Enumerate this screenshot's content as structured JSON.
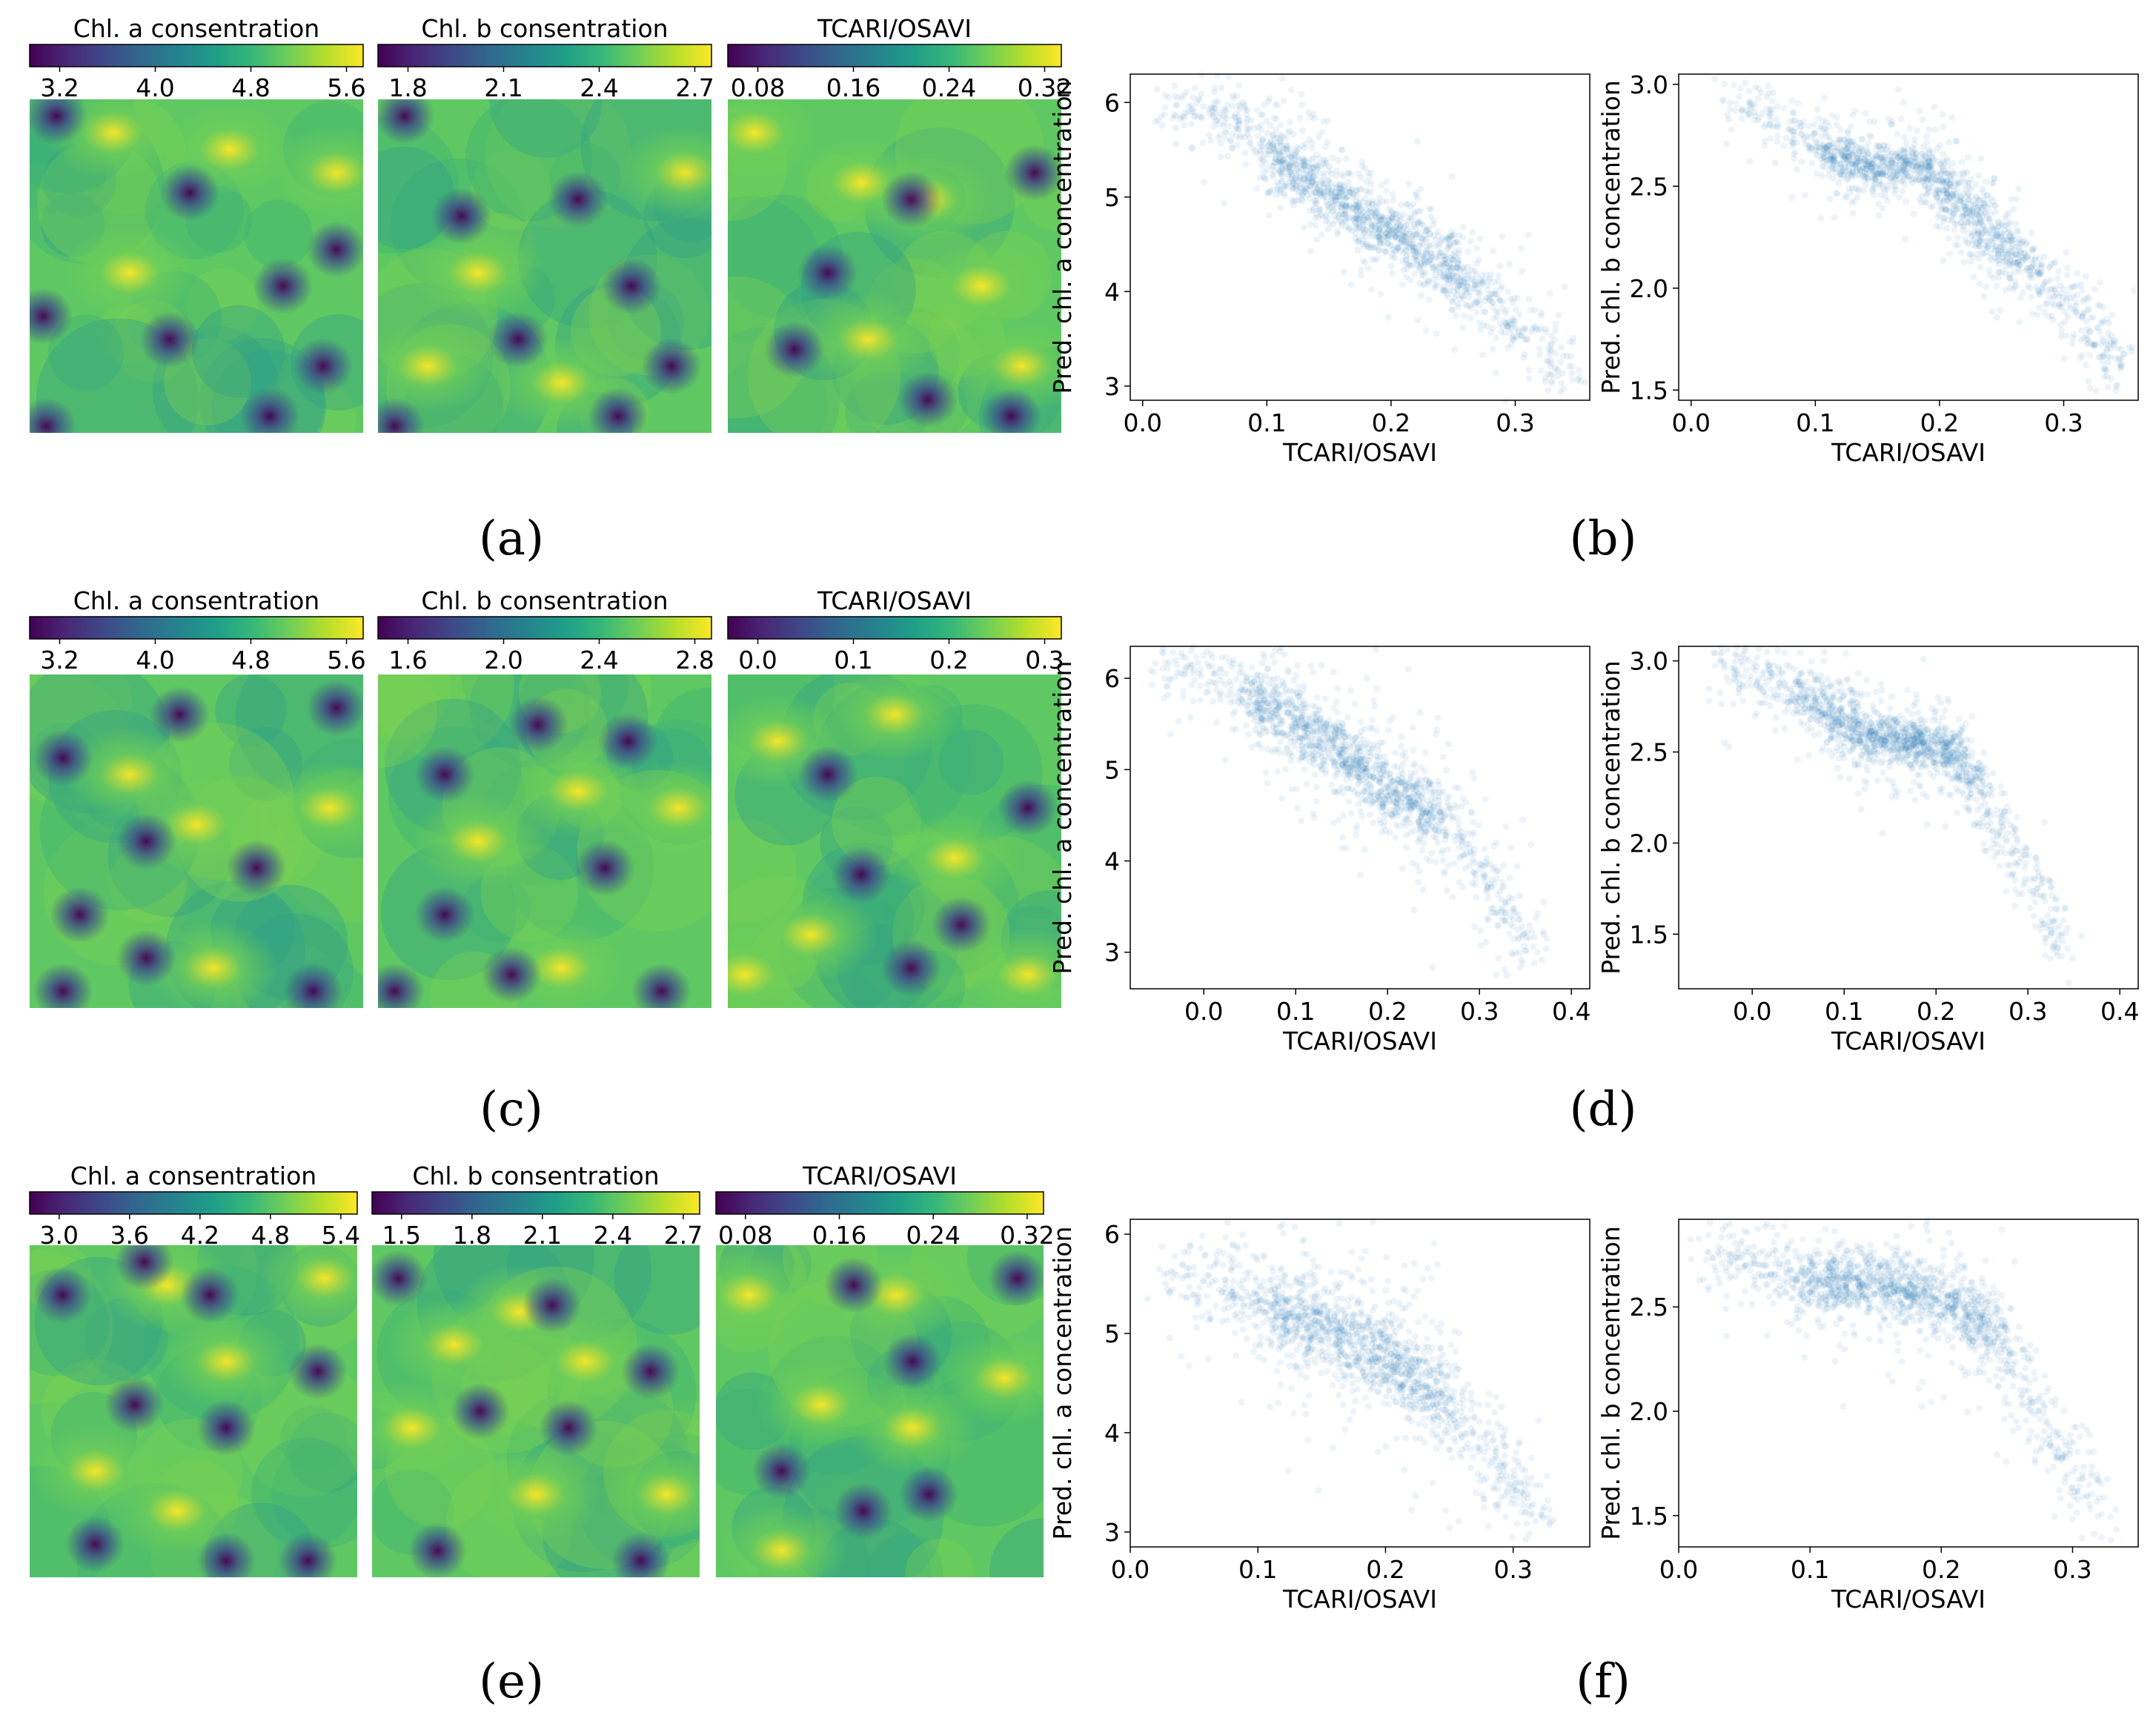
{
  "figure": {
    "subfigure_labels": [
      "(a)",
      "(b)",
      "(c)",
      "(d)",
      "(e)",
      "(f)"
    ]
  },
  "colors": {
    "scatter_point": "#1f77b4",
    "viridis": [
      "#440154",
      "#482878",
      "#3e4989",
      "#31688e",
      "#26828e",
      "#1f9e89",
      "#35b779",
      "#6ece58",
      "#b5de2b",
      "#fde725"
    ]
  },
  "chart_data": [
    {
      "id": "a-chl-a",
      "group": "a",
      "type": "heatmap",
      "colormap": "viridis",
      "title": "Chl. a consentration",
      "colorbar_ticks": [
        "3.2",
        "4.0",
        "4.8",
        "5.6"
      ],
      "blobs_low": [
        [
          0.08,
          0.05
        ],
        [
          0.48,
          0.28
        ],
        [
          0.76,
          0.56
        ],
        [
          0.42,
          0.72
        ],
        [
          0.88,
          0.8
        ],
        [
          0.05,
          0.98
        ],
        [
          0.72,
          0.95
        ],
        [
          0.92,
          0.45
        ],
        [
          0.04,
          0.65
        ]
      ],
      "blobs_high": [
        [
          0.3,
          0.52
        ],
        [
          0.92,
          0.22
        ],
        [
          0.6,
          0.15
        ],
        [
          0.25,
          0.1
        ]
      ]
    },
    {
      "id": "a-chl-b",
      "group": "a",
      "type": "heatmap",
      "colormap": "viridis",
      "title": "Chl. b consentration",
      "colorbar_ticks": [
        "1.8",
        "2.1",
        "2.4",
        "2.7"
      ],
      "blobs_low": [
        [
          0.08,
          0.05
        ],
        [
          0.6,
          0.3
        ],
        [
          0.76,
          0.56
        ],
        [
          0.42,
          0.72
        ],
        [
          0.88,
          0.8
        ],
        [
          0.05,
          0.98
        ],
        [
          0.72,
          0.95
        ],
        [
          0.25,
          0.35
        ]
      ],
      "blobs_high": [
        [
          0.3,
          0.52
        ],
        [
          0.92,
          0.22
        ],
        [
          0.55,
          0.85
        ],
        [
          0.15,
          0.8
        ]
      ]
    },
    {
      "id": "a-tcari",
      "group": "a",
      "type": "heatmap",
      "colormap": "viridis",
      "title": "TCARI/OSAVI",
      "colorbar_ticks": [
        "0.08",
        "0.16",
        "0.24",
        "0.32"
      ],
      "blobs_low": [
        [
          0.3,
          0.52
        ],
        [
          0.55,
          0.3
        ],
        [
          0.92,
          0.22
        ],
        [
          0.2,
          0.75
        ],
        [
          0.6,
          0.9
        ],
        [
          0.85,
          0.95
        ]
      ],
      "blobs_high": [
        [
          0.76,
          0.56
        ],
        [
          0.08,
          0.1
        ],
        [
          0.42,
          0.72
        ],
        [
          0.88,
          0.8
        ],
        [
          0.6,
          0.3
        ],
        [
          0.4,
          0.25
        ]
      ]
    },
    {
      "id": "b-chl-a",
      "group": "b",
      "type": "scatter",
      "xlabel": "TCARI/OSAVI",
      "ylabel": "Pred. chl. a concentration",
      "xlim": [
        -0.01,
        0.36
      ],
      "ylim": [
        2.85,
        6.3
      ],
      "xticks": [
        "0.0",
        "0.1",
        "0.2",
        "0.3"
      ],
      "yticks": [
        "3",
        "4",
        "5",
        "6"
      ],
      "trend": [
        [
          0.02,
          6.0
        ],
        [
          0.08,
          5.8
        ],
        [
          0.12,
          5.3
        ],
        [
          0.16,
          4.95
        ],
        [
          0.22,
          4.5
        ],
        [
          0.28,
          3.9
        ],
        [
          0.345,
          3.1
        ]
      ],
      "spread": 0.28
    },
    {
      "id": "b-chl-b",
      "group": "b",
      "type": "scatter",
      "xlabel": "TCARI/OSAVI",
      "ylabel": "Pred. chl. b concentration",
      "xlim": [
        -0.01,
        0.36
      ],
      "ylim": [
        1.45,
        3.05
      ],
      "xticks": [
        "0.0",
        "0.1",
        "0.2",
        "0.3"
      ],
      "yticks": [
        "1.5",
        "2.0",
        "2.5",
        "3.0"
      ],
      "trend": [
        [
          0.03,
          2.93
        ],
        [
          0.09,
          2.75
        ],
        [
          0.13,
          2.6
        ],
        [
          0.19,
          2.6
        ],
        [
          0.25,
          2.2
        ],
        [
          0.31,
          1.9
        ],
        [
          0.345,
          1.6
        ]
      ],
      "spread": 0.1
    },
    {
      "id": "c-chl-a",
      "group": "c",
      "type": "heatmap",
      "colormap": "viridis",
      "title": "Chl. a consentration",
      "colorbar_ticks": [
        "3.2",
        "4.0",
        "4.8",
        "5.6"
      ],
      "blobs_low": [
        [
          0.45,
          0.12
        ],
        [
          0.1,
          0.25
        ],
        [
          0.35,
          0.5
        ],
        [
          0.68,
          0.58
        ],
        [
          0.15,
          0.72
        ],
        [
          0.35,
          0.85
        ],
        [
          0.1,
          0.95
        ],
        [
          0.85,
          0.95
        ],
        [
          0.92,
          0.1
        ]
      ],
      "blobs_high": [
        [
          0.3,
          0.3
        ],
        [
          0.9,
          0.4
        ],
        [
          0.55,
          0.88
        ],
        [
          0.5,
          0.45
        ]
      ]
    },
    {
      "id": "c-chl-b",
      "group": "c",
      "type": "heatmap",
      "colormap": "viridis",
      "title": "Chl. b consentration",
      "colorbar_ticks": [
        "1.6",
        "2.0",
        "2.4",
        "2.8"
      ],
      "blobs_low": [
        [
          0.48,
          0.15
        ],
        [
          0.2,
          0.3
        ],
        [
          0.75,
          0.2
        ],
        [
          0.68,
          0.58
        ],
        [
          0.2,
          0.72
        ],
        [
          0.4,
          0.9
        ],
        [
          0.05,
          0.95
        ],
        [
          0.85,
          0.95
        ]
      ],
      "blobs_high": [
        [
          0.3,
          0.5
        ],
        [
          0.9,
          0.4
        ],
        [
          0.55,
          0.88
        ],
        [
          0.6,
          0.35
        ]
      ]
    },
    {
      "id": "c-tcari",
      "group": "c",
      "type": "heatmap",
      "colormap": "viridis",
      "title": "TCARI/OSAVI",
      "colorbar_ticks": [
        "0.0",
        "0.1",
        "0.2",
        "0.3"
      ],
      "blobs_low": [
        [
          0.3,
          0.3
        ],
        [
          0.9,
          0.4
        ],
        [
          0.55,
          0.88
        ],
        [
          0.4,
          0.6
        ],
        [
          0.7,
          0.75
        ]
      ],
      "blobs_high": [
        [
          0.5,
          0.12
        ],
        [
          0.68,
          0.55
        ],
        [
          0.25,
          0.78
        ],
        [
          0.15,
          0.2
        ],
        [
          0.05,
          0.9
        ],
        [
          0.9,
          0.9
        ]
      ]
    },
    {
      "id": "d-chl-a",
      "group": "d",
      "type": "scatter",
      "xlabel": "TCARI/OSAVI",
      "ylabel": "Pred. chl. a concentration",
      "xlim": [
        -0.08,
        0.42
      ],
      "ylim": [
        2.6,
        6.35
      ],
      "xticks": [
        "0.0",
        "0.1",
        "0.2",
        "0.3",
        "0.4"
      ],
      "yticks": [
        "3",
        "4",
        "5",
        "6"
      ],
      "trend": [
        [
          -0.05,
          6.2
        ],
        [
          0.05,
          5.85
        ],
        [
          0.12,
          5.35
        ],
        [
          0.2,
          4.8
        ],
        [
          0.27,
          4.4
        ],
        [
          0.32,
          3.6
        ],
        [
          0.36,
          3.0
        ]
      ],
      "spread": 0.35
    },
    {
      "id": "d-chl-b",
      "group": "d",
      "type": "scatter",
      "xlabel": "TCARI/OSAVI",
      "ylabel": "Pred. chl. b concentration",
      "xlim": [
        -0.08,
        0.42
      ],
      "ylim": [
        1.2,
        3.08
      ],
      "xticks": [
        "0.0",
        "0.1",
        "0.2",
        "0.3",
        "0.4"
      ],
      "yticks": [
        "1.5",
        "2.0",
        "2.5",
        "3.0"
      ],
      "trend": [
        [
          -0.04,
          3.0
        ],
        [
          0.06,
          2.8
        ],
        [
          0.12,
          2.6
        ],
        [
          0.22,
          2.5
        ],
        [
          0.27,
          2.1
        ],
        [
          0.31,
          1.75
        ],
        [
          0.34,
          1.4
        ]
      ],
      "spread": 0.13
    },
    {
      "id": "e-chl-a",
      "group": "e",
      "type": "heatmap",
      "colormap": "viridis",
      "title": "Chl. a consentration",
      "colorbar_ticks": [
        "3.0",
        "3.6",
        "4.2",
        "4.8",
        "5.4"
      ],
      "blobs_low": [
        [
          0.1,
          0.15
        ],
        [
          0.55,
          0.15
        ],
        [
          0.88,
          0.38
        ],
        [
          0.32,
          0.48
        ],
        [
          0.6,
          0.55
        ],
        [
          0.2,
          0.9
        ],
        [
          0.6,
          0.95
        ],
        [
          0.85,
          0.95
        ],
        [
          0.35,
          0.05
        ]
      ],
      "blobs_high": [
        [
          0.42,
          0.12
        ],
        [
          0.6,
          0.35
        ],
        [
          0.9,
          0.1
        ],
        [
          0.2,
          0.68
        ],
        [
          0.45,
          0.8
        ]
      ]
    },
    {
      "id": "e-chl-b",
      "group": "e",
      "type": "heatmap",
      "colormap": "viridis",
      "title": "Chl. b consentration",
      "colorbar_ticks": [
        "1.5",
        "1.8",
        "2.1",
        "2.4",
        "2.7"
      ],
      "blobs_low": [
        [
          0.08,
          0.1
        ],
        [
          0.55,
          0.18
        ],
        [
          0.85,
          0.38
        ],
        [
          0.33,
          0.5
        ],
        [
          0.6,
          0.55
        ],
        [
          0.2,
          0.92
        ],
        [
          0.82,
          0.95
        ]
      ],
      "blobs_high": [
        [
          0.45,
          0.2
        ],
        [
          0.65,
          0.35
        ],
        [
          0.12,
          0.55
        ],
        [
          0.5,
          0.75
        ],
        [
          0.9,
          0.75
        ],
        [
          0.25,
          0.3
        ]
      ]
    },
    {
      "id": "e-tcari",
      "group": "e",
      "type": "heatmap",
      "colormap": "viridis",
      "title": "TCARI/OSAVI",
      "colorbar_ticks": [
        "0.08",
        "0.16",
        "0.24",
        "0.32"
      ],
      "blobs_low": [
        [
          0.42,
          0.12
        ],
        [
          0.6,
          0.35
        ],
        [
          0.2,
          0.68
        ],
        [
          0.45,
          0.8
        ],
        [
          0.92,
          0.1
        ],
        [
          0.65,
          0.75
        ]
      ],
      "blobs_high": [
        [
          0.1,
          0.15
        ],
        [
          0.55,
          0.15
        ],
        [
          0.88,
          0.4
        ],
        [
          0.32,
          0.48
        ],
        [
          0.6,
          0.55
        ],
        [
          0.2,
          0.92
        ]
      ]
    },
    {
      "id": "f-chl-a",
      "group": "f",
      "type": "scatter",
      "xlabel": "TCARI/OSAVI",
      "ylabel": "Pred. chl. a concentration",
      "xlim": [
        0.0,
        0.36
      ],
      "ylim": [
        2.85,
        6.15
      ],
      "xticks": [
        "0.0",
        "0.1",
        "0.2",
        "0.3"
      ],
      "yticks": [
        "3",
        "4",
        "5",
        "6"
      ],
      "trend": [
        [
          0.03,
          5.6
        ],
        [
          0.08,
          5.45
        ],
        [
          0.13,
          5.15
        ],
        [
          0.2,
          4.8
        ],
        [
          0.25,
          4.3
        ],
        [
          0.29,
          3.6
        ],
        [
          0.32,
          3.3
        ]
      ],
      "spread": 0.4
    },
    {
      "id": "f-chl-b",
      "group": "f",
      "type": "scatter",
      "xlabel": "TCARI/OSAVI",
      "ylabel": "Pred. chl. b concentration",
      "xlim": [
        0.0,
        0.35
      ],
      "ylim": [
        1.35,
        2.92
      ],
      "xticks": [
        "0.0",
        "0.1",
        "0.2",
        "0.3"
      ],
      "yticks": [
        "1.5",
        "2.0",
        "2.5"
      ],
      "trend": [
        [
          0.02,
          2.78
        ],
        [
          0.1,
          2.62
        ],
        [
          0.17,
          2.6
        ],
        [
          0.23,
          2.45
        ],
        [
          0.27,
          2.05
        ],
        [
          0.3,
          1.7
        ],
        [
          0.32,
          1.5
        ]
      ],
      "spread": 0.14
    }
  ]
}
